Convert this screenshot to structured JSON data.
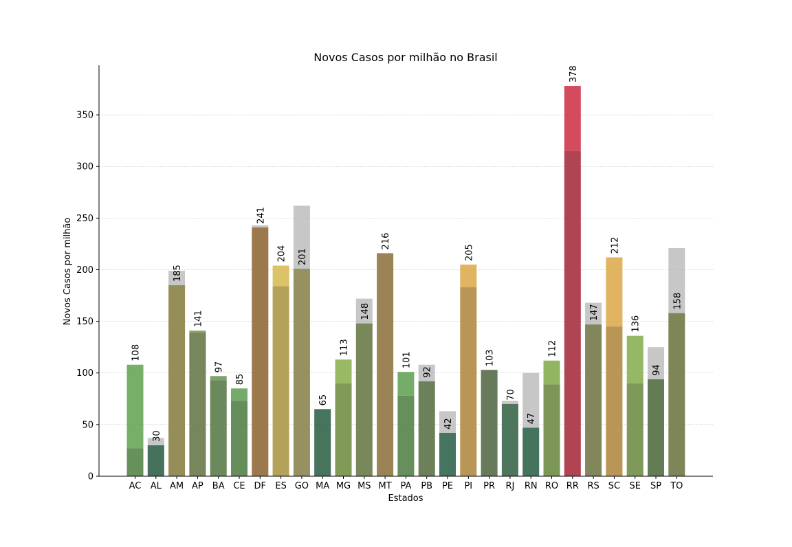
{
  "chart_data": {
    "type": "bar",
    "title": "Novos Casos por milhão no Brasil",
    "xlabel": "Estados",
    "ylabel": "Novos Casos por milhão",
    "ylim": [
      0,
      398
    ],
    "yticks": [
      0,
      50,
      100,
      150,
      200,
      250,
      300,
      350
    ],
    "grid": "y, dotted",
    "categories": [
      "AC",
      "AL",
      "AM",
      "AP",
      "BA",
      "CE",
      "DF",
      "ES",
      "GO",
      "MA",
      "MG",
      "MS",
      "MT",
      "PA",
      "PB",
      "PE",
      "PI",
      "PR",
      "RJ",
      "RN",
      "RO",
      "RR",
      "RS",
      "SC",
      "SE",
      "SP",
      "TO"
    ],
    "series": [
      {
        "role": "previous",
        "values": [
          27,
          37,
          199,
          139,
          93,
          73,
          243,
          184,
          262,
          65,
          90,
          172,
          216,
          78,
          108,
          63,
          183,
          103,
          73,
          100,
          89,
          315,
          168,
          145,
          90,
          125,
          221
        ]
      },
      {
        "role": "current",
        "values": [
          108,
          30,
          185,
          141,
          97,
          85,
          241,
          204,
          201,
          65,
          113,
          148,
          216,
          101,
          92,
          42,
          205,
          103,
          70,
          47,
          112,
          378,
          147,
          212,
          136,
          94,
          158
        ]
      }
    ],
    "data_labels": [
      "108",
      "30",
      "185",
      "141",
      "97",
      "85",
      "241",
      "204",
      "201",
      "65",
      "113",
      "148",
      "216",
      "101",
      "92",
      "42",
      "205",
      "103",
      "70",
      "47",
      "112",
      "378",
      "147",
      "212",
      "136",
      "94",
      "158"
    ],
    "colors": {
      "AC": "#5fa04e",
      "AL": "#2f7151",
      "AM": "#a79a4a",
      "AP": "#7a8e4e",
      "BA": "#66934f",
      "CE": "#5d9b4f",
      "DF": "#b07b3a",
      "ES": "#d6b84c",
      "GO": "#a89d57",
      "MA": "#2f7350",
      "MG": "#87ad4a",
      "MS": "#7b914e",
      "MT": "#ad8a45",
      "PA": "#5d9d4e",
      "PB": "#68864c",
      "PE": "#2d7358",
      "PI": "#dca746",
      "PR": "#5f7e4c",
      "RJ": "#3a7650",
      "RN": "#2c7252",
      "RO": "#7fa845",
      "RR": "#cd2b42",
      "RS": "#898e4e",
      "SC": "#dca746",
      "SE": "#83ab4b",
      "SP": "#5c8046",
      "TO": "#838f4b",
      "previous_overlay": "#b4b4b4"
    }
  }
}
